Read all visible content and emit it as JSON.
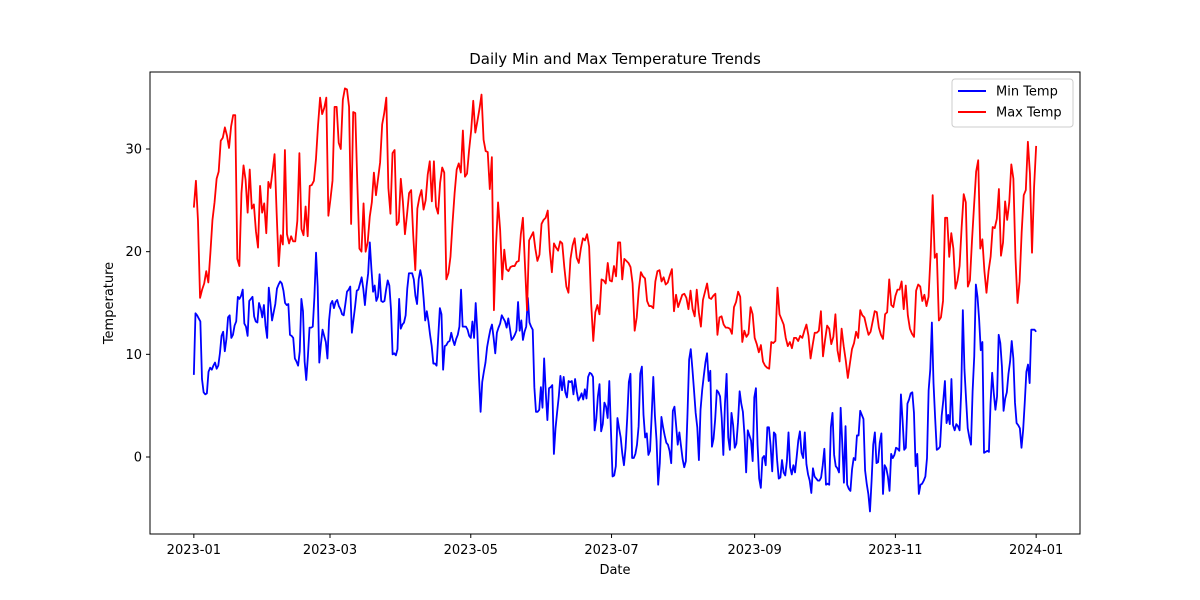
{
  "chart_data": {
    "type": "line",
    "title": "Daily Min and Max Temperature Trends",
    "xlabel": "Date",
    "ylabel": "Temperature",
    "x_start": "2023-01-01",
    "x_end": "2024-01-01",
    "xlim": [
      "2022-12-13",
      "2024-01-20"
    ],
    "ylim": [
      -7.5,
      37.5
    ],
    "x_ticks": [
      {
        "date": "2023-01-01",
        "label": "2023-01"
      },
      {
        "date": "2023-03-01",
        "label": "2023-03"
      },
      {
        "date": "2023-05-01",
        "label": "2023-05"
      },
      {
        "date": "2023-07-01",
        "label": "2023-07"
      },
      {
        "date": "2023-09-01",
        "label": "2023-09"
      },
      {
        "date": "2023-11-01",
        "label": "2023-11"
      },
      {
        "date": "2024-01-01",
        "label": "2024-01"
      }
    ],
    "y_ticks": [
      {
        "value": 0,
        "label": "0"
      },
      {
        "value": 10,
        "label": "10"
      },
      {
        "value": 20,
        "label": "20"
      },
      {
        "value": 30,
        "label": "30"
      }
    ],
    "grid": false,
    "legend_position": "top-right",
    "series": [
      {
        "name": "Min Temp",
        "color": "#0000ff",
        "values": [
          8,
          14,
          13.8,
          13.5,
          13.2,
          7.6,
          6.3,
          6.1,
          6.2,
          8.3,
          8.7,
          8.5,
          8.9,
          9.2,
          8.6,
          8.9,
          10.1,
          11.8,
          12.2,
          10.3,
          11.5,
          13.6,
          13.8,
          11.6,
          11.9,
          12.8,
          13.2,
          15.6,
          15.4,
          15.7,
          16.3,
          13,
          12.7,
          11.8,
          15.2,
          15.4,
          15.6,
          13.7,
          13.2,
          13.1,
          15,
          14.5,
          13.6,
          14.8,
          12.8,
          11.6,
          16.5,
          15,
          13.3,
          14.1,
          14.9,
          16.4,
          16.8,
          17.1,
          16.9,
          16.2,
          15,
          14.8,
          14.9,
          11.9,
          11.8,
          11.6,
          9.6,
          9.3,
          8.9,
          10.3,
          15.4,
          14.2,
          9.3,
          7.5,
          9.8,
          12.6,
          12.6,
          12.7,
          15.6,
          19.9,
          16.6,
          9.2,
          11,
          12.4,
          11.8,
          11.2,
          9.6,
          13.3,
          14.9,
          15.2,
          14.5,
          15.1,
          15.3,
          14.7,
          14.4,
          13.9,
          13.8,
          14.9,
          16.1,
          16.3,
          16.6,
          12.1,
          13.4,
          14.7,
          16.2,
          16.3,
          16.9,
          17.5,
          16.4,
          14.8,
          16.6,
          17.9,
          20.9,
          18.3,
          16.1,
          16.7,
          15.2,
          15.6,
          17.8,
          15.2,
          15.1,
          15.2,
          16.3,
          17.2,
          16.7,
          14.4,
          10,
          10.1,
          9.9,
          10.5,
          15.4,
          12.5,
          12.9,
          13.1,
          13.8,
          16.4,
          17.9,
          17.9,
          17.9,
          17.3,
          15.7,
          14.9,
          17.3,
          18.2,
          17.4,
          15.5,
          13.3,
          14.2,
          13.2,
          11.9,
          10.8,
          9.1,
          9.1,
          8.9,
          11.7,
          14.5,
          13.9,
          8.5,
          10.8,
          10.9,
          11.2,
          11.3,
          12.1,
          11.4,
          10.9,
          11.5,
          11.9,
          12.7,
          16.3,
          12.7,
          12.7,
          12.7,
          12.4,
          11.8,
          11.6,
          13.2,
          11.6,
          15,
          12.2,
          7.9,
          4.4,
          7.3,
          8.3,
          9.2,
          10.7,
          11.6,
          12.4,
          12.9,
          11.6,
          10.1,
          12.1,
          12.6,
          13,
          13.8,
          13.5,
          13.2,
          12.6,
          13.5,
          12.5,
          11.4,
          11.6,
          11.9,
          12.3,
          15.1,
          12.3,
          13.3,
          11.4,
          12.2,
          12.7,
          15.5,
          13.1,
          12.7,
          12.4,
          6.8,
          4.4,
          4.4,
          4.6,
          6.8,
          4.8,
          9.6,
          6.3,
          3.6,
          6.7,
          6.8,
          7,
          0.3,
          2.8,
          4.4,
          5.9,
          7.9,
          6.5,
          7.8,
          6.3,
          5.8,
          7.4,
          7.3,
          7.4,
          6.1,
          7.6,
          6.4,
          5.5,
          5.8,
          6.2,
          5.6,
          6.6,
          5.7,
          7.8,
          8.2,
          8.1,
          7.8,
          2.6,
          3.7,
          5.9,
          7.1,
          2.5,
          3.2,
          5.3,
          4.9,
          3.8,
          7.4,
          2.6,
          -1.9,
          -1.8,
          -0.9,
          3.8,
          2.8,
          1.9,
          0.3,
          -0.8,
          0.9,
          3.8,
          7.3,
          8.1,
          -0.1,
          -0.1,
          0.3,
          1.2,
          3,
          8.1,
          8.8,
          4.1,
          1.9,
          2.3,
          0.2,
          0.6,
          4,
          7.8,
          4,
          1.6,
          -2.7,
          -0.6,
          3.9,
          2.9,
          2.1,
          1.4,
          1.2,
          0.6,
          -0.6,
          4.5,
          4.9,
          3.1,
          1.2,
          2.4,
          1.1,
          -0.2,
          -1,
          -0.4,
          4.2,
          9.5,
          10.5,
          8.6,
          6.5,
          4.3,
          2.9,
          -0.3,
          4.6,
          6.5,
          7.9,
          9.2,
          10.1,
          7.4,
          8.4,
          1,
          1.8,
          3.7,
          6.5,
          6.3,
          5.9,
          3.8,
          0.2,
          5.2,
          8.1,
          1.9,
          0.7,
          4.3,
          3.1,
          0.9,
          1.3,
          3.4,
          6.4,
          5.2,
          4.4,
          2.1,
          -1.5,
          2.6,
          2.1,
          1.6,
          -0.4,
          5.8,
          6.7,
          1.2,
          -2.1,
          -3,
          -0.1,
          0.1,
          -0.8,
          2.9,
          2.9,
          1.1,
          -1.4,
          2.4,
          2.2,
          -0.3,
          -2.1,
          -2,
          -0.3,
          -1.5,
          -1.8,
          -0.4,
          2.4,
          -1,
          -1.7,
          -0.8,
          -1.5,
          0,
          1.6,
          2.5,
          0.4,
          -0.1,
          2.4,
          -0.7,
          -1.7,
          -2.3,
          -3.5,
          -1.1,
          -1.9,
          -2.1,
          -2.3,
          -2.3,
          -2,
          -0.8,
          0.8,
          -2.7,
          -2.6,
          -2.7,
          2.9,
          4.3,
          0.2,
          -0.9,
          -1.1,
          -1.5,
          4.8,
          1.3,
          -2.5,
          3,
          -2.7,
          -3.1,
          -3.3,
          -1.2,
          -0.1,
          -0.3,
          2.1,
          2.1,
          4.5,
          4.1,
          3.7,
          -1.3,
          -2.6,
          -3.6,
          -5.3,
          -2.3,
          1.2,
          2.4,
          -0.6,
          -0.5,
          1.4,
          2.3,
          -3.6,
          -0.8,
          -1.1,
          -1.9,
          -3.3,
          0.3,
          -0.1,
          0.2,
          0.9,
          0.8,
          0.6,
          6.1,
          3.6,
          0.7,
          0.9,
          5.2,
          5.6,
          6.2,
          6.3,
          4.3,
          -0.9,
          0.3,
          -3.6,
          -2.7,
          -2.6,
          -2.3,
          -1.9,
          -0.1,
          6.5,
          8.5,
          13.1,
          7.2,
          3.8,
          0.7,
          0.8,
          1,
          4,
          5.5,
          7.4,
          3.3,
          4.1,
          3.2,
          7.6,
          3.1,
          2.6,
          3.2,
          3,
          2.6,
          6.4,
          14.3,
          8.5,
          5.6,
          2.8,
          1.9,
          1.2,
          6.4,
          9.8,
          16.8,
          15.6,
          13.4,
          10.4,
          11.2,
          0.4,
          0.5,
          0.6,
          0.5,
          5.2,
          8.2,
          6.2,
          4.6,
          5.9,
          11.9,
          11.1,
          8.8,
          4.5,
          5.7,
          6.3,
          8.1,
          9.3,
          11.3,
          9.6,
          5.3,
          3.3,
          3.1,
          2.8,
          0.9,
          2.6,
          5.3,
          8.3,
          9,
          7.2,
          12.4,
          12.4,
          12.4,
          12.2
        ]
      },
      {
        "name": "Max Temp",
        "color": "#ff0000",
        "values": [
          24.3,
          26.9,
          23,
          15.5,
          16.3,
          16.9,
          18.1,
          17,
          19.9,
          23.1,
          24.8,
          27.1,
          27.8,
          30.8,
          31.1,
          32.1,
          31.3,
          30.1,
          32.2,
          33.3,
          33.3,
          19.3,
          18.6,
          25.7,
          28.4,
          27,
          23.8,
          28,
          24.2,
          24.6,
          22,
          20.4,
          26.4,
          23.8,
          24.7,
          21.8,
          26.8,
          26.2,
          27.8,
          29.5,
          23.8,
          18.6,
          21.6,
          20.7,
          29.9,
          21.7,
          20.8,
          21.5,
          21,
          21,
          23,
          29.6,
          22.2,
          21.6,
          24.4,
          21.5,
          26.4,
          26.5,
          26.9,
          29,
          32.3,
          35,
          33.4,
          34,
          35,
          23.5,
          25.1,
          26.9,
          34.1,
          34.1,
          30.6,
          30,
          34.8,
          35.9,
          35.8,
          34.1,
          22.7,
          33.6,
          33.5,
          26.6,
          20.3,
          20,
          24.7,
          20,
          20.9,
          23.4,
          24.8,
          27.7,
          25.5,
          27.1,
          28.7,
          32.4,
          33.5,
          35,
          26.2,
          23.7,
          29.6,
          29.9,
          22.6,
          22.9,
          27.1,
          24.9,
          21.7,
          23.6,
          25.7,
          26,
          21.6,
          18.2,
          24.2,
          25.3,
          26,
          24.1,
          25,
          27.5,
          28.8,
          24.9,
          28.8,
          24.4,
          23.7,
          26.7,
          28.2,
          27.7,
          17.3,
          17.9,
          19.5,
          22.8,
          25.7,
          28,
          28.6,
          27.7,
          31.8,
          27.3,
          27.6,
          29.9,
          31.8,
          34.7,
          31.6,
          32.7,
          33.9,
          35.3,
          30.9,
          29.8,
          29.7,
          26.1,
          29.2,
          14.3,
          20.6,
          24.8,
          22.1,
          17.3,
          20.2,
          18.3,
          18.1,
          18.5,
          18.6,
          18.6,
          19,
          19.1,
          21.7,
          23.3,
          18.7,
          14.3,
          21.1,
          21.5,
          21.9,
          20.3,
          19.1,
          19.7,
          22.7,
          23.1,
          23.3,
          24,
          20.1,
          18,
          20.8,
          20.4,
          20.1,
          21,
          20.8,
          18.5,
          16.6,
          16,
          19.3,
          20.6,
          21.3,
          19.4,
          18.9,
          20.3,
          21.3,
          21.1,
          21.7,
          20.5,
          14.9,
          11.3,
          14.1,
          14.8,
          13.9,
          17.3,
          17.2,
          16.9,
          18.9,
          17.2,
          17.1,
          18.6,
          17.6,
          20.9,
          20.9,
          17.3,
          19.3,
          19.1,
          18.9,
          18.5,
          16.9,
          12.3,
          13.6,
          16.3,
          18,
          17.6,
          17.4,
          15.2,
          14.7,
          14.7,
          14.5,
          17.1,
          18.1,
          18.2,
          17.1,
          17.5,
          16.8,
          17,
          17.7,
          18.3,
          14.2,
          15.8,
          14.6,
          15.2,
          15.8,
          15.9,
          15.5,
          14.4,
          16.2,
          14.4,
          13.7,
          16.3,
          14.1,
          12.7,
          15.3,
          16.1,
          16.9,
          15.5,
          15.4,
          15.7,
          15.9,
          11.9,
          13.6,
          13.7,
          12.9,
          12.6,
          12.6,
          12.5,
          12,
          14.6,
          15.1,
          16.1,
          15.6,
          11.2,
          12.3,
          11.7,
          12,
          14.6,
          13.9,
          11.6,
          11,
          10.2,
          10.9,
          9.3,
          8.9,
          8.7,
          8.6,
          11.2,
          11.1,
          11.3,
          16.5,
          13.9,
          13.4,
          12.9,
          11.6,
          10.8,
          11.2,
          10.6,
          11.6,
          11.6,
          11.3,
          11.8,
          11.6,
          12.3,
          12.9,
          11.8,
          9.6,
          10.9,
          12.1,
          12.1,
          12.3,
          14.2,
          9.8,
          11.4,
          12.8,
          12.5,
          11,
          11.7,
          13.9,
          10.4,
          9.3,
          12.5,
          10.8,
          9.4,
          7.7,
          9.1,
          10.5,
          11.1,
          12.2,
          11.6,
          14.3,
          13.8,
          13.6,
          12.7,
          11.9,
          12.2,
          13.2,
          14.2,
          14.1,
          12.6,
          11.9,
          11.5,
          13.9,
          14.1,
          17.3,
          14.8,
          14.6,
          15.7,
          16.3,
          16.3,
          17.1,
          14.4,
          16.7,
          13.8,
          12.5,
          12,
          11.7,
          16.2,
          16.8,
          16.6,
          15.2,
          15.8,
          14.7,
          15.6,
          19.7,
          25.5,
          19.4,
          19.8,
          13.3,
          13.6,
          15.2,
          23.3,
          23.3,
          19.5,
          21.8,
          20.3,
          16.4,
          17.2,
          18.6,
          22.4,
          25.6,
          24.8,
          16.6,
          17.2,
          21.1,
          24.5,
          27.8,
          28.9,
          20.3,
          21.2,
          18.1,
          16,
          18.1,
          19.5,
          22.4,
          22.3,
          23.2,
          26.1,
          19.6,
          20.9,
          24.9,
          23.1,
          24.8,
          28.5,
          27.1,
          19.4,
          15,
          17.1,
          21.9,
          25.5,
          26,
          30.7,
          27.6,
          19.9,
          26.3,
          30.3
        ]
      }
    ]
  }
}
